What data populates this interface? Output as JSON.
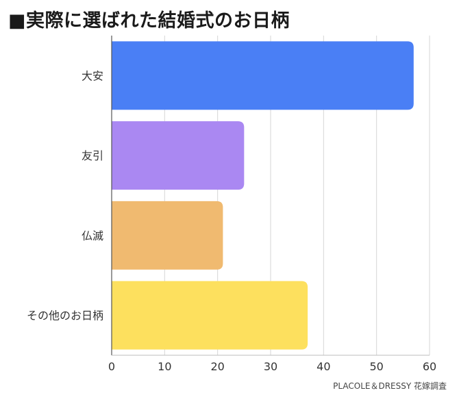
{
  "title": "■実際に選ばれた結婚式のお日柄",
  "source_note": "PLACOLE＆DRESSY 花嫁調査",
  "chart_data": {
    "type": "bar",
    "orientation": "horizontal",
    "categories": [
      "大安",
      "友引",
      "仏滅",
      "その他のお日柄"
    ],
    "values": [
      57,
      25,
      21,
      37
    ],
    "colors": [
      "#4a7ff5",
      "#aa88f2",
      "#f0ba70",
      "#fde05e"
    ],
    "xlim": [
      0,
      60
    ],
    "xticks": [
      "0",
      "10",
      "20",
      "30",
      "40",
      "50",
      "60"
    ],
    "grid": true,
    "legend": "none"
  }
}
